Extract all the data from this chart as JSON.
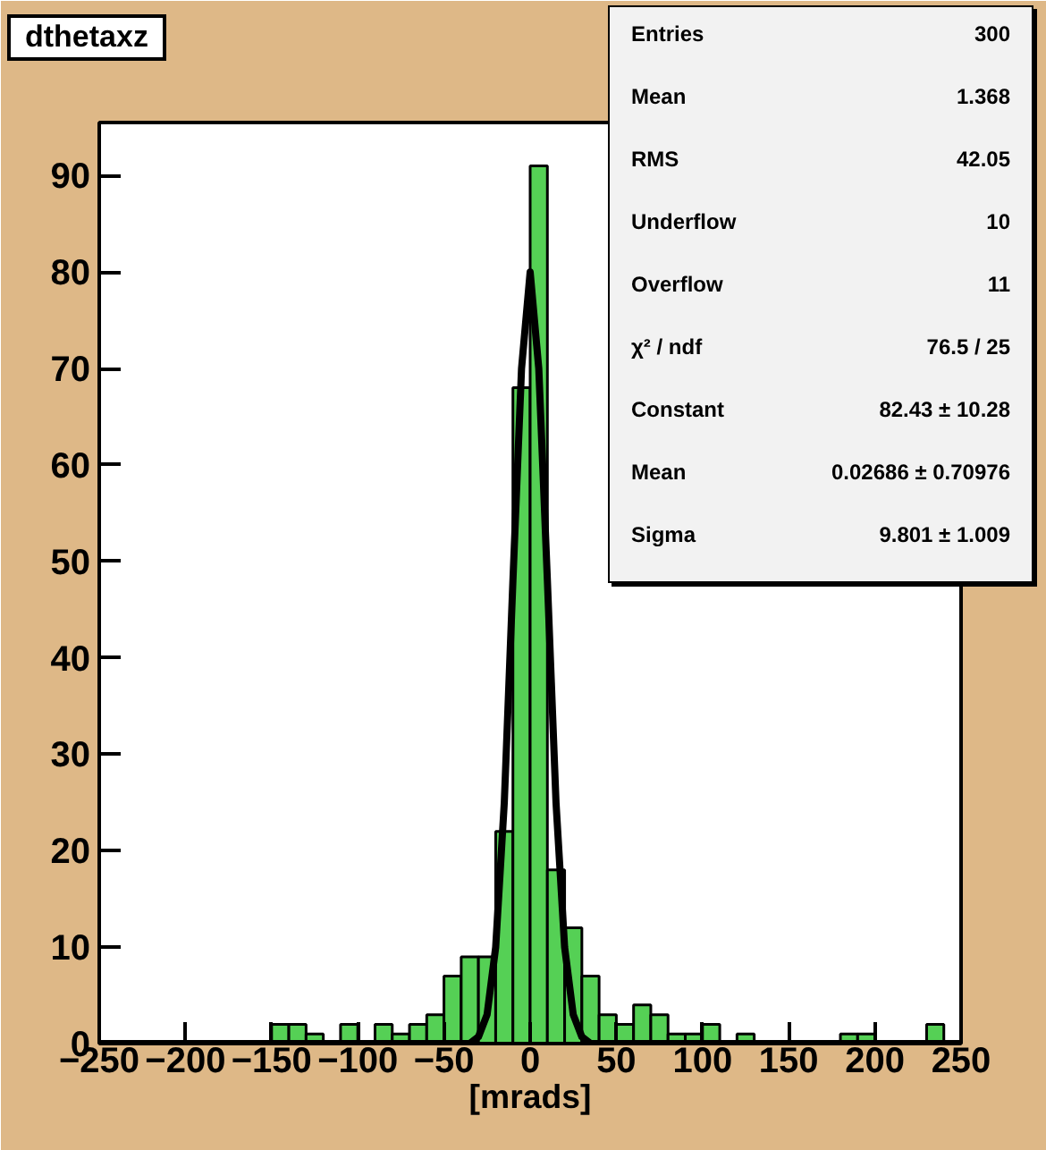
{
  "chart_data": {
    "type": "histogram",
    "title": "dthetaxz",
    "xlabel": "[mrads]",
    "bins": [
      -250,
      -240,
      -230,
      -220,
      -210,
      -200,
      -190,
      -180,
      -170,
      -160,
      -150,
      -140,
      -130,
      -120,
      -110,
      -100,
      -90,
      -80,
      -70,
      -60,
      -50,
      -40,
      -30,
      -20,
      -10,
      0,
      10,
      20,
      30,
      40,
      50,
      60,
      70,
      80,
      90,
      100,
      110,
      120,
      130,
      140,
      150,
      160,
      170,
      180,
      190,
      200,
      210,
      220,
      230,
      240,
      250
    ],
    "series": [
      {
        "color": "#55d055",
        "values": [
          0,
          0,
          0,
          0,
          0,
          0,
          0,
          0,
          0,
          0,
          2,
          2,
          1,
          0,
          2,
          0,
          2,
          1,
          2,
          3,
          7,
          9,
          9,
          22,
          68,
          91,
          18,
          12,
          7,
          3,
          2,
          4,
          3,
          1,
          1,
          2,
          0,
          1,
          0,
          0,
          0,
          0,
          0,
          1,
          1,
          0,
          0,
          0,
          2,
          0
        ]
      },
      {
        "type": "line",
        "color": "#000000",
        "x": [
          -250,
          -40,
          -35,
          -30,
          -25,
          -20,
          -15,
          -10,
          -5,
          0,
          5,
          10,
          15,
          20,
          25,
          30,
          35,
          40,
          250
        ],
        "values": [
          0,
          0,
          0,
          0.7,
          3,
          10,
          25,
          48,
          70,
          80,
          70,
          48,
          25,
          10,
          3,
          0.7,
          0,
          0,
          0
        ]
      }
    ],
    "xlim": [
      -250,
      250
    ],
    "ylim": [
      0,
      95.5
    ],
    "xticks": [
      -250,
      -200,
      -150,
      -100,
      -50,
      0,
      50,
      100,
      150,
      200,
      250
    ],
    "yticks": [
      0,
      10,
      20,
      30,
      40,
      50,
      60,
      70,
      80,
      90
    ],
    "grid": false,
    "annotations": [
      "Entries",
      "300",
      "Mean",
      "1.368",
      "RMS",
      "42.05",
      "Underflow",
      "10",
      "Overflow",
      "11",
      "χ² / ndf",
      "76.5 / 25",
      "Constant",
      "82.43 ± 10.28",
      "Mean",
      "0.02686 ± 0.70976",
      "Sigma",
      "9.801 ± 1.009"
    ]
  }
}
